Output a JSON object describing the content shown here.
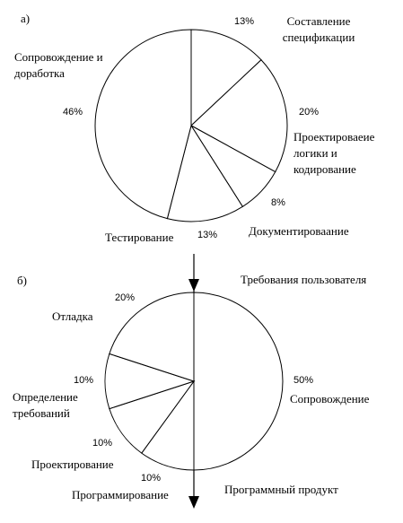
{
  "chart_data": [
    {
      "type": "pie",
      "title": "а)",
      "categories": [
        "Составление спецификации",
        "Проектироваеие логики и кодирование",
        "Документироваание",
        "Тестирование",
        "Сопровождение и доработка"
      ],
      "values": [
        13,
        20,
        8,
        13,
        46
      ],
      "value_labels": [
        "13%",
        "20%",
        "8%",
        "13%",
        "46%"
      ],
      "color": "#ffffff"
    },
    {
      "type": "pie",
      "title": "б)",
      "categories": [
        "Сопровождение",
        "Программирование",
        "Проектирование",
        "Определение требований",
        "Отладка"
      ],
      "values": [
        50,
        10,
        10,
        10,
        20
      ],
      "value_labels": [
        "50%",
        "10%",
        "10%",
        "10%",
        "20%"
      ],
      "color": "#ffffff",
      "annotations": [
        "Требования пользователя",
        "Программный продукт"
      ]
    }
  ]
}
